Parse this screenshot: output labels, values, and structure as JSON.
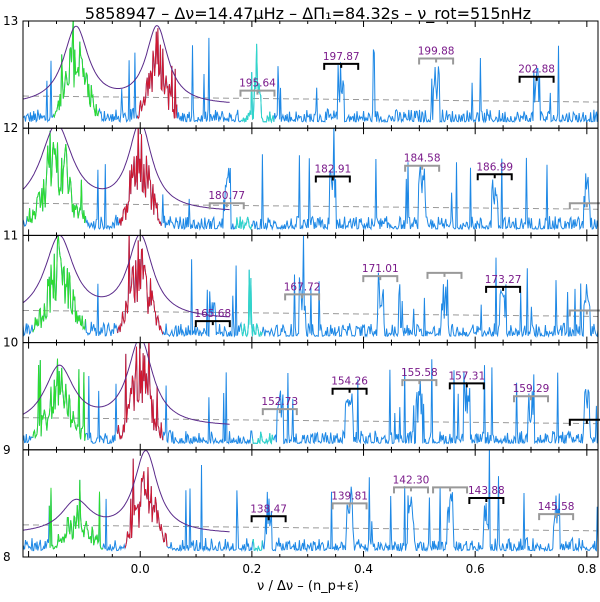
{
  "chart_data": {
    "type": "line",
    "title": "5858947 – Δν=14.47μHz – ΔΠ₁=84.32s – ν_rot=515nHz",
    "xlabel": "ν / Δν – (n_p+ε)",
    "ylabel": "",
    "xlim": [
      -0.21,
      0.82
    ],
    "ylim": [
      8,
      13
    ],
    "x_ticks": [
      0.0,
      0.2,
      0.4,
      0.6,
      0.8
    ],
    "x_tick_labels": [
      "0.0",
      "0.2",
      "0.4",
      "0.6",
      "0.8"
    ],
    "y_ticks": [
      8,
      9,
      10,
      11,
      12,
      13
    ],
    "y_tick_labels": [
      "8",
      "9",
      "10",
      "11",
      "12",
      "13"
    ],
    "colors": {
      "spectrum": "#1e88e5",
      "l0_mode": "#d01830",
      "l2_mode": "#2edc2e",
      "l3_mode": "#30d8c8",
      "lorentz_fit": "#5a2a8a",
      "period_label": "#7a1a8a",
      "dashed_level": "#999999",
      "marker_gray": "#999999",
      "marker_black": "#000000"
    },
    "rows": [
      {
        "order": 12,
        "offset": 12,
        "background": 0.3,
        "l2_center": -0.115,
        "l2_amp": 0.85,
        "l2_width": 0.017,
        "l0_center": 0.03,
        "l0_amp": 0.85,
        "l0_width": 0.015,
        "l3_range": [
          0.18,
          0.24
        ],
        "labels": [
          {
            "text": "195.64",
            "x": 0.21,
            "level": 0.35,
            "marker": "gray"
          },
          {
            "text": "197.87",
            "x": 0.36,
            "level": 0.6,
            "marker": "black"
          },
          {
            "text": "199.88",
            "x": 0.53,
            "level": 0.65,
            "marker": "gray"
          },
          {
            "text": "202.88",
            "x": 0.71,
            "level": 0.48,
            "marker": "black"
          }
        ]
      },
      {
        "order": 11,
        "offset": 11,
        "background": 0.3,
        "l2_center": -0.15,
        "l2_amp": 0.95,
        "l2_width": 0.022,
        "l0_center": 0.0,
        "l0_amp": 0.95,
        "l0_width": 0.016,
        "l3_range": [
          0.17,
          0.2
        ],
        "labels": [
          {
            "text": "180.77",
            "x": 0.155,
            "level": 0.3,
            "marker": "gray"
          },
          {
            "text": "182.91",
            "x": 0.345,
            "level": 0.55,
            "marker": "black"
          },
          {
            "text": "184.58",
            "x": 0.505,
            "level": 0.65,
            "marker": "gray"
          },
          {
            "text": "186.99",
            "x": 0.635,
            "level": 0.57,
            "marker": "black"
          },
          {
            "text": "",
            "x": 0.8,
            "level": 0.3,
            "marker": "gray"
          }
        ]
      },
      {
        "order": 10,
        "offset": 10,
        "background": 0.3,
        "l2_center": -0.145,
        "l2_amp": 0.9,
        "l2_width": 0.02,
        "l0_center": 0.0,
        "l0_amp": 0.9,
        "l0_width": 0.017,
        "l3_range": [
          0.18,
          0.22
        ],
        "labels": [
          {
            "text": "165.68",
            "x": 0.13,
            "level": 0.2,
            "marker": "black"
          },
          {
            "text": "167.72",
            "x": 0.29,
            "level": 0.45,
            "marker": "gray"
          },
          {
            "text": "171.01",
            "x": 0.43,
            "level": 0.62,
            "marker": "gray"
          },
          {
            "text": "",
            "x": 0.545,
            "level": 0.65,
            "marker": "gray"
          },
          {
            "text": "173.27",
            "x": 0.65,
            "level": 0.52,
            "marker": "black"
          },
          {
            "text": "",
            "x": 0.8,
            "level": 0.3,
            "marker": "gray"
          }
        ]
      },
      {
        "order": 9,
        "offset": 9,
        "background": 0.3,
        "l2_center": -0.145,
        "l2_amp": 0.65,
        "l2_width": 0.02,
        "l0_center": 0.0,
        "l0_amp": 0.95,
        "l0_width": 0.017,
        "l3_range": [
          0.2,
          0.24
        ],
        "labels": [
          {
            "text": "152.73",
            "x": 0.25,
            "level": 0.38,
            "marker": "gray"
          },
          {
            "text": "154.26",
            "x": 0.375,
            "level": 0.57,
            "marker": "black"
          },
          {
            "text": "155.58",
            "x": 0.5,
            "level": 0.65,
            "marker": "gray"
          },
          {
            "text": "157.31",
            "x": 0.585,
            "level": 0.62,
            "marker": "black"
          },
          {
            "text": "159.29",
            "x": 0.7,
            "level": 0.5,
            "marker": "gray"
          },
          {
            "text": "",
            "x": 0.8,
            "level": 0.28,
            "marker": "black"
          }
        ]
      },
      {
        "order": 8,
        "offset": 8,
        "background": 0.3,
        "l2_center": -0.115,
        "l2_amp": 0.35,
        "l2_width": 0.02,
        "l0_center": 0.01,
        "l0_amp": 0.9,
        "l0_width": 0.016,
        "l3_range": [
          0.2,
          0.22
        ],
        "labels": [
          {
            "text": "138.47",
            "x": 0.23,
            "level": 0.38,
            "marker": "black"
          },
          {
            "text": "139.81",
            "x": 0.375,
            "level": 0.5,
            "marker": "gray"
          },
          {
            "text": "142.30",
            "x": 0.485,
            "level": 0.65,
            "marker": "gray"
          },
          {
            "text": "",
            "x": 0.555,
            "level": 0.65,
            "marker": "gray"
          },
          {
            "text": "143.88",
            "x": 0.62,
            "level": 0.55,
            "marker": "black"
          },
          {
            "text": "145.58",
            "x": 0.745,
            "level": 0.4,
            "marker": "gray"
          }
        ]
      }
    ]
  }
}
